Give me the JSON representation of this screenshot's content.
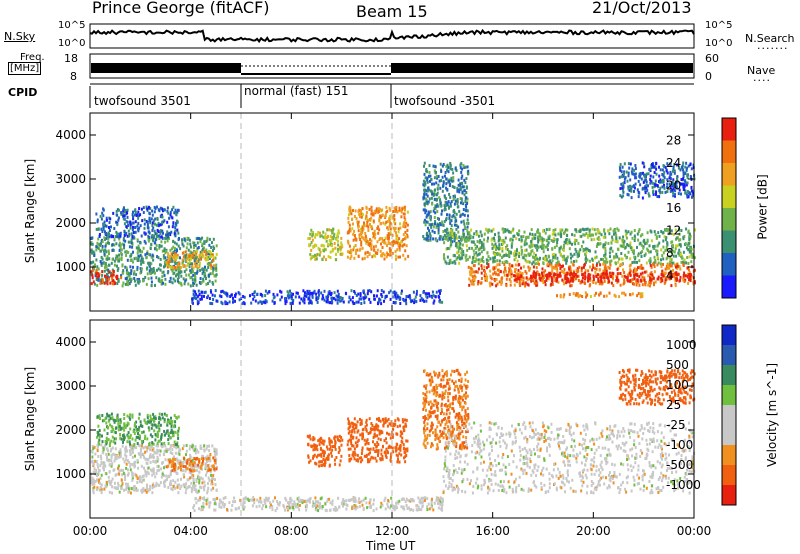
{
  "header": {
    "station": "Prince George (fitACF)",
    "beam": "Beam 15",
    "date": "21/Oct/2013"
  },
  "strip": {
    "nsky_label": "N.Sky",
    "nsearch_label": "N.Search",
    "freq_label_top": "Freq.",
    "freq_label_unit": "[MHz]",
    "nave_label": "Nave",
    "cpid_label": "CPID",
    "nsky_ticks": [
      "10^5",
      "10^0"
    ],
    "nsearch_ticks": [
      "10^5",
      "10^0"
    ],
    "freq_ticks": [
      "18",
      "8"
    ],
    "nave_ticks": [
      "60",
      "0"
    ]
  },
  "cpid_modes": [
    {
      "label": "twofsound 3501",
      "start": 0,
      "end": 6
    },
    {
      "label": "normal (fast) 151",
      "start": 6,
      "end": 12
    },
    {
      "label": "twofsound -3501",
      "start": 12,
      "end": 24
    }
  ],
  "x_axis": {
    "label": "Time UT",
    "ticks": [
      "00:00",
      "04:00",
      "08:00",
      "12:00",
      "16:00",
      "20:00",
      "00:00"
    ]
  },
  "panels": {
    "power": {
      "ylabel": "Slant Range [km]",
      "yticks": [
        "1000",
        "2000",
        "3000",
        "4000"
      ],
      "cbar_label": "Power [dB]",
      "cbar_ticks": [
        "4",
        "8",
        "12",
        "16",
        "20",
        "24",
        "28"
      ]
    },
    "velocity": {
      "ylabel": "Slant Range [km]",
      "yticks": [
        "1000",
        "2000",
        "3000",
        "4000"
      ],
      "cbar_label": "Velocity [m s^-1]",
      "cbar_ticks": [
        "1000",
        "500",
        "100",
        "25",
        "-25",
        "-100",
        "-500",
        "-1000"
      ]
    }
  },
  "colors": {
    "power_scale": [
      "#1a1aff",
      "#2060c0",
      "#3a9070",
      "#6fb24a",
      "#c8d020",
      "#f0a020",
      "#f07010",
      "#e82010"
    ],
    "velocity_scale": [
      "#1028c8",
      "#2a5ab0",
      "#3a8a60",
      "#70c040",
      "#c8c8c8",
      "#c8c8c8",
      "#f09020",
      "#f06010",
      "#e82010"
    ],
    "guide_line": "#bbbbbb"
  },
  "chart_data": [
    {
      "type": "heatmap",
      "title": "Power",
      "x_range": [
        0,
        24
      ],
      "x_unit": "hours UT",
      "y_range": [
        0,
        4500
      ],
      "y_unit": "km",
      "color_range": [
        0,
        30
      ],
      "color_unit": "dB",
      "regions": [
        {
          "x": [
            0,
            5
          ],
          "y": [
            600,
            1700
          ],
          "value": 10
        },
        {
          "x": [
            0,
            1.2
          ],
          "y": [
            650,
            950
          ],
          "value": 28
        },
        {
          "x": [
            0.2,
            3.5
          ],
          "y": [
            1700,
            2400
          ],
          "value": 6
        },
        {
          "x": [
            3,
            5
          ],
          "y": [
            1000,
            1400
          ],
          "value": 20
        },
        {
          "x": [
            8.6,
            10
          ],
          "y": [
            1200,
            1900
          ],
          "value": 16
        },
        {
          "x": [
            10.2,
            12.6
          ],
          "y": [
            1200,
            2400
          ],
          "value": 22
        },
        {
          "x": [
            13.2,
            15
          ],
          "y": [
            1600,
            3400
          ],
          "value": 8
        },
        {
          "x": [
            14,
            24
          ],
          "y": [
            1100,
            1900
          ],
          "value": 12
        },
        {
          "x": [
            15,
            24
          ],
          "y": [
            600,
            1100
          ],
          "value": 24
        },
        {
          "x": [
            16.8,
            24
          ],
          "y": [
            700,
            900
          ],
          "value": 30
        },
        {
          "x": [
            18.5,
            22
          ],
          "y": [
            350,
            450
          ],
          "value": 22
        },
        {
          "x": [
            21,
            24
          ],
          "y": [
            2600,
            3400
          ],
          "value": 6
        },
        {
          "x": [
            4,
            14
          ],
          "y": [
            200,
            500
          ],
          "value": 4
        }
      ]
    },
    {
      "type": "heatmap",
      "title": "Velocity",
      "x_range": [
        0,
        24
      ],
      "x_unit": "hours UT",
      "y_range": [
        0,
        4500
      ],
      "y_unit": "km",
      "color_range": [
        -1000,
        1000
      ],
      "color_unit": "m s^-1",
      "regions": [
        {
          "x": [
            0,
            5
          ],
          "y": [
            600,
            1700
          ],
          "value": 0
        },
        {
          "x": [
            0.2,
            3.5
          ],
          "y": [
            1700,
            2400
          ],
          "value": 100
        },
        {
          "x": [
            3,
            5
          ],
          "y": [
            1100,
            1400
          ],
          "value": -100
        },
        {
          "x": [
            8.6,
            10
          ],
          "y": [
            1200,
            1900
          ],
          "value": -150
        },
        {
          "x": [
            10.2,
            12.6
          ],
          "y": [
            1300,
            2300
          ],
          "value": -200
        },
        {
          "x": [
            13.2,
            15
          ],
          "y": [
            1600,
            3400
          ],
          "value": -100
        },
        {
          "x": [
            14,
            24
          ],
          "y": [
            600,
            2200
          ],
          "value": 0
        },
        {
          "x": [
            21,
            24
          ],
          "y": [
            2600,
            3400
          ],
          "value": -150
        },
        {
          "x": [
            4,
            14
          ],
          "y": [
            200,
            500
          ],
          "value": 0
        }
      ]
    }
  ]
}
